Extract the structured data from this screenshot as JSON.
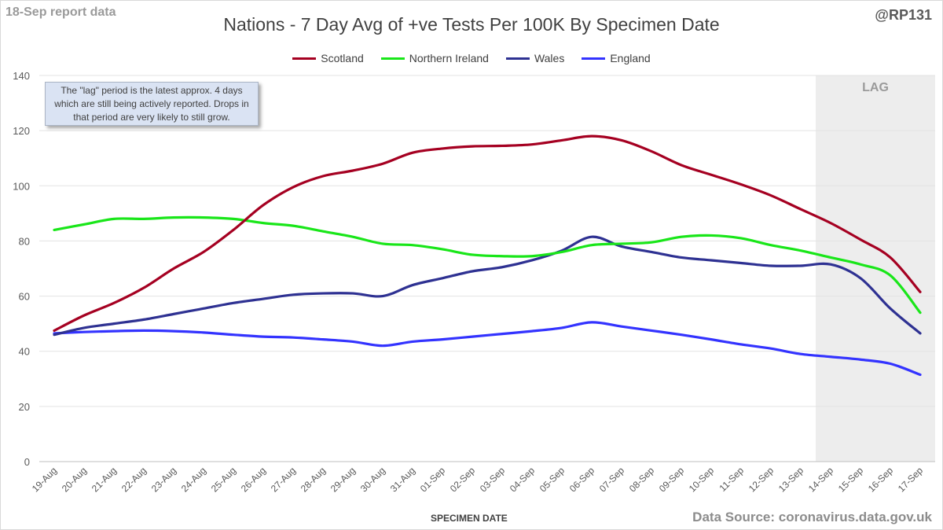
{
  "header": {
    "report_note": "18-Sep report data",
    "handle": "@RP131"
  },
  "footer": {
    "source": "Data Source: coronavirus.data.gov.uk"
  },
  "annotation": {
    "text": "The \"lag\" period is the latest approx. 4 days which are still being actively reported.  Drops in that period are very likely to still grow."
  },
  "chart_data": {
    "type": "line",
    "title": "Nations - 7 Day Avg of +ve Tests Per 100K By Specimen Date",
    "xlabel": "SPECIMEN DATE",
    "ylabel": "",
    "ylim": [
      0,
      140
    ],
    "yticks": [
      0,
      20,
      40,
      60,
      80,
      100,
      120,
      140
    ],
    "grid": true,
    "legend_position": "top",
    "categories": [
      "19-Aug",
      "20-Aug",
      "21-Aug",
      "22-Aug",
      "23-Aug",
      "24-Aug",
      "25-Aug",
      "26-Aug",
      "27-Aug",
      "28-Aug",
      "29-Aug",
      "30-Aug",
      "31-Aug",
      "01-Sep",
      "02-Sep",
      "03-Sep",
      "04-Sep",
      "05-Sep",
      "06-Sep",
      "07-Sep",
      "08-Sep",
      "09-Sep",
      "10-Sep",
      "11-Sep",
      "12-Sep",
      "13-Sep",
      "14-Sep",
      "15-Sep",
      "16-Sep",
      "17-Sep"
    ],
    "lag_region": {
      "label": "LAG",
      "start": "14-Sep",
      "end": "17-Sep"
    },
    "series": [
      {
        "name": "Scotland",
        "color": "#a50021",
        "values": [
          47.5,
          53,
          57.5,
          63,
          70,
          76,
          84,
          93,
          99.5,
          103.5,
          105.5,
          108,
          112,
          113.5,
          114.3,
          114.5,
          115,
          116.5,
          118,
          116.5,
          112.5,
          107.5,
          104,
          100.5,
          96.5,
          91.5,
          86.5,
          80.5,
          74,
          61.5
        ]
      },
      {
        "name": "Northern Ireland",
        "color": "#19e619",
        "values": [
          84,
          86,
          88,
          88,
          88.5,
          88.5,
          88,
          86.5,
          85.5,
          83.5,
          81.5,
          79,
          78.5,
          77,
          75,
          74.5,
          74.5,
          76,
          78.5,
          79,
          79.5,
          81.5,
          82,
          81,
          78.5,
          76.5,
          74,
          71.5,
          67.5,
          54
        ]
      },
      {
        "name": "Wales",
        "color": "#2e3192",
        "values": [
          46,
          48.5,
          50,
          51.5,
          53.5,
          55.5,
          57.5,
          59,
          60.5,
          61,
          61,
          60,
          64,
          66.5,
          69,
          70.5,
          73,
          76.5,
          81.5,
          78,
          76,
          74,
          73,
          72,
          71,
          71,
          71.5,
          66.5,
          55.5,
          46.5
        ]
      },
      {
        "name": "England",
        "color": "#3333ff",
        "values": [
          46.5,
          47,
          47.3,
          47.5,
          47.3,
          46.8,
          46,
          45.3,
          45,
          44.3,
          43.5,
          42,
          43.5,
          44.3,
          45.3,
          46.3,
          47.3,
          48.5,
          50.5,
          49,
          47.5,
          46,
          44.3,
          42.5,
          41,
          39,
          38,
          37,
          35.5,
          31.5
        ]
      }
    ]
  }
}
